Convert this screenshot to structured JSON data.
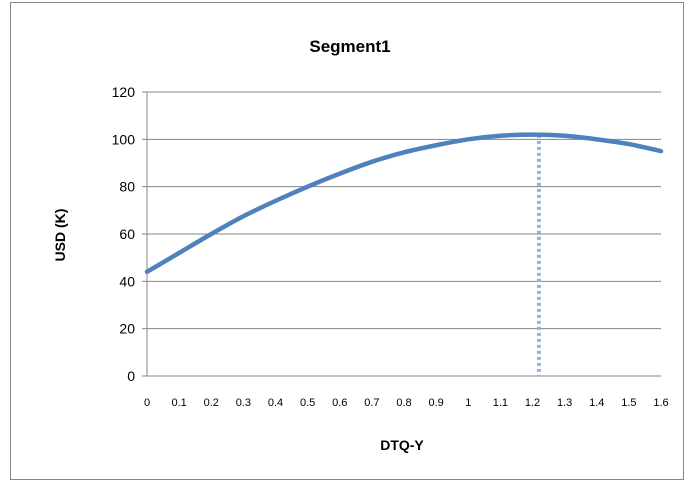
{
  "chart_data": {
    "type": "line",
    "title": "Segment1",
    "xlabel": "DTQ-Y",
    "ylabel": "USD (K)",
    "xlim": [
      0,
      1.6
    ],
    "ylim": [
      0,
      120
    ],
    "x_ticks": [
      "0",
      "0.1",
      "0.2",
      "0.3",
      "0.4",
      "0.5",
      "0.6",
      "0.7",
      "0.8",
      "0.9",
      "1",
      "1.1",
      "1.2",
      "1.3",
      "1.4",
      "1.5",
      "1.6"
    ],
    "y_ticks": [
      "0",
      "20",
      "40",
      "60",
      "80",
      "100",
      "120"
    ],
    "grid": "horizontal",
    "legend": "none",
    "series": [
      {
        "color": "#4F81BD",
        "x": [
          0,
          0.1,
          0.2,
          0.3,
          0.4,
          0.5,
          0.6,
          0.7,
          0.8,
          0.9,
          1.0,
          1.1,
          1.2,
          1.3,
          1.4,
          1.5,
          1.6
        ],
        "y": [
          44,
          52,
          60,
          67.5,
          74,
          80,
          85.5,
          90.5,
          94.5,
          97.5,
          100,
          101.5,
          102,
          101.5,
          100,
          98,
          95
        ]
      }
    ],
    "reference_line": {
      "x": 1.22,
      "style": "dotted",
      "color": "#8EB4E3"
    }
  }
}
